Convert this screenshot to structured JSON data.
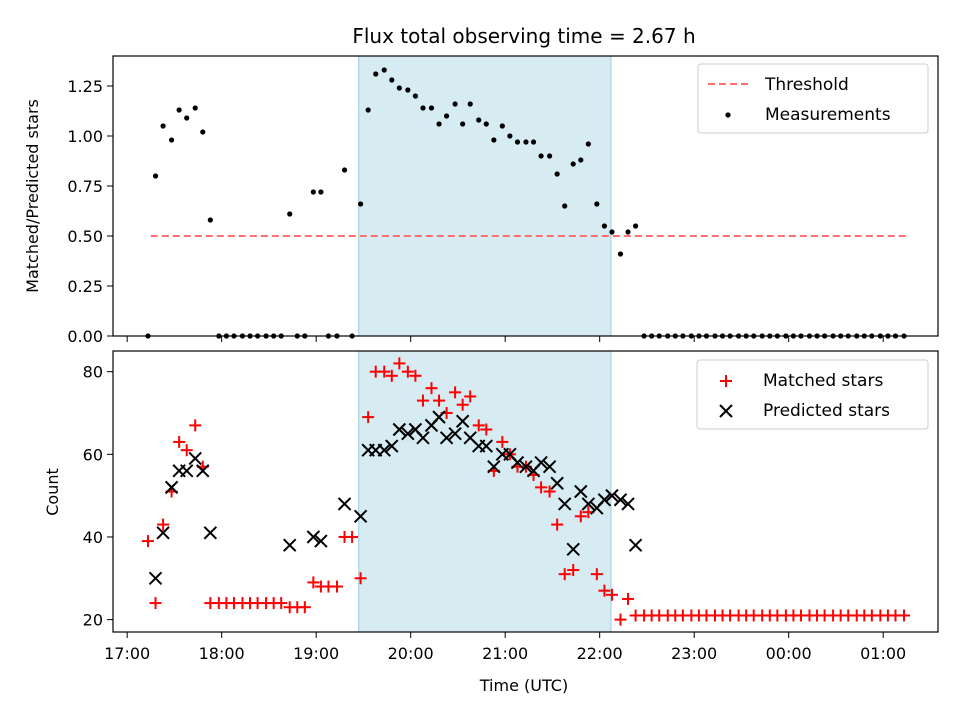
{
  "chart_data": [
    {
      "type": "scatter",
      "title": "Flux total observing time = 2.67 h",
      "ylabel": "Matched/Predicted stars",
      "ylim": [
        0,
        1.4
      ],
      "yticks": [
        "0.00",
        "0.25",
        "0.50",
        "0.75",
        "1.00",
        "1.25"
      ],
      "shaded_region": [
        19.45,
        22.12
      ],
      "legend_position": "top-right",
      "threshold": {
        "name": "Threshold",
        "value": 0.5,
        "x_range": [
          17.25,
          25.25
        ]
      },
      "series": [
        {
          "name": "Measurements",
          "x": [
            17.22,
            17.3,
            17.38,
            17.47,
            17.55,
            17.63,
            17.72,
            17.8,
            17.88,
            17.97,
            18.05,
            18.13,
            18.22,
            18.3,
            18.38,
            18.47,
            18.55,
            18.63,
            18.72,
            18.8,
            18.88,
            18.97,
            19.05,
            19.13,
            19.22,
            19.3,
            19.38,
            19.47,
            19.55,
            19.63,
            19.72,
            19.8,
            19.88,
            19.97,
            20.05,
            20.13,
            20.22,
            20.3,
            20.38,
            20.47,
            20.55,
            20.63,
            20.72,
            20.8,
            20.88,
            20.97,
            21.05,
            21.13,
            21.22,
            21.3,
            21.38,
            21.47,
            21.55,
            21.63,
            21.72,
            21.8,
            21.88,
            21.97,
            22.05,
            22.13,
            22.22,
            22.3,
            22.38,
            22.47,
            22.55,
            22.63,
            22.72,
            22.8,
            22.88,
            22.97,
            23.05,
            23.13,
            23.22,
            23.3,
            23.38,
            23.47,
            23.55,
            23.63,
            23.72,
            23.8,
            23.88,
            23.97,
            24.05,
            24.13,
            24.22,
            24.3,
            24.38,
            24.47,
            24.55,
            24.63,
            24.72,
            24.8,
            24.88,
            24.97,
            25.05,
            25.13,
            25.22
          ],
          "y": [
            0.0,
            0.8,
            1.05,
            0.98,
            1.13,
            1.09,
            1.14,
            1.02,
            0.58,
            0.0,
            0.0,
            0.0,
            0.0,
            0.0,
            0.0,
            0.0,
            0.0,
            0.0,
            0.61,
            0.0,
            0.0,
            0.72,
            0.72,
            0.0,
            0.0,
            0.83,
            0.0,
            0.66,
            1.13,
            1.31,
            1.33,
            1.28,
            1.24,
            1.23,
            1.2,
            1.14,
            1.14,
            1.06,
            1.1,
            1.16,
            1.06,
            1.16,
            1.08,
            1.06,
            0.98,
            1.05,
            1.0,
            0.97,
            0.97,
            0.97,
            0.9,
            0.9,
            0.81,
            0.65,
            0.86,
            0.88,
            0.96,
            0.66,
            0.55,
            0.52,
            0.41,
            0.52,
            0.55,
            0.0,
            0.0,
            0.0,
            0.0,
            0.0,
            0.0,
            0.0,
            0.0,
            0.0,
            0.0,
            0.0,
            0.0,
            0.0,
            0.0,
            0.0,
            0.0,
            0.0,
            0.0,
            0.0,
            0.0,
            0.0,
            0.0,
            0.0,
            0.0,
            0.0,
            0.0,
            0.0,
            0.0,
            0.0,
            0.0,
            0.0,
            0.0,
            0.0,
            0.0
          ]
        }
      ]
    },
    {
      "type": "scatter",
      "xlabel": "Time (UTC)",
      "ylabel": "Count",
      "ylim": [
        17,
        85
      ],
      "yticks": [
        "20",
        "40",
        "60",
        "80"
      ],
      "xlim": [
        16.85,
        25.58
      ],
      "xtick_values": [
        17,
        18,
        19,
        20,
        21,
        22,
        23,
        24,
        25
      ],
      "xtick_labels": [
        "17:00",
        "18:00",
        "19:00",
        "20:00",
        "21:00",
        "22:00",
        "23:00",
        "00:00",
        "01:00"
      ],
      "shaded_region": [
        19.45,
        22.12
      ],
      "legend_position": "top-right",
      "series": [
        {
          "name": "Matched stars",
          "x": [
            17.22,
            17.3,
            17.38,
            17.47,
            17.55,
            17.63,
            17.72,
            17.8,
            17.88,
            17.97,
            18.05,
            18.13,
            18.22,
            18.3,
            18.38,
            18.47,
            18.55,
            18.63,
            18.72,
            18.8,
            18.88,
            18.97,
            19.05,
            19.13,
            19.22,
            19.3,
            19.38,
            19.47,
            19.55,
            19.63,
            19.72,
            19.8,
            19.88,
            19.97,
            20.05,
            20.13,
            20.22,
            20.3,
            20.38,
            20.47,
            20.55,
            20.63,
            20.72,
            20.8,
            20.88,
            20.97,
            21.05,
            21.13,
            21.22,
            21.3,
            21.38,
            21.47,
            21.55,
            21.63,
            21.72,
            21.8,
            21.88,
            21.97,
            22.05,
            22.13,
            22.22,
            22.3,
            22.38,
            22.47,
            22.55,
            22.63,
            22.72,
            22.8,
            22.88,
            22.97,
            23.05,
            23.13,
            23.22,
            23.3,
            23.38,
            23.47,
            23.55,
            23.63,
            23.72,
            23.8,
            23.88,
            23.97,
            24.05,
            24.13,
            24.22,
            24.3,
            24.38,
            24.47,
            24.55,
            24.63,
            24.72,
            24.8,
            24.88,
            24.97,
            25.05,
            25.13,
            25.22
          ],
          "y": [
            39,
            24,
            43,
            51,
            63,
            61,
            67,
            57,
            24,
            24,
            24,
            24,
            24,
            24,
            24,
            24,
            24,
            24,
            23,
            23,
            23,
            29,
            28,
            28,
            28,
            40,
            40,
            30,
            69,
            80,
            80,
            79,
            82,
            80,
            79,
            73,
            76,
            73,
            70,
            75,
            72,
            74,
            67,
            66,
            56,
            63,
            60,
            57,
            57,
            55,
            52,
            51,
            43,
            31,
            32,
            45,
            46,
            31,
            27,
            26,
            20,
            25,
            21,
            21,
            21,
            21,
            21,
            21,
            21,
            21,
            21,
            21,
            21,
            21,
            21,
            21,
            21,
            21,
            21,
            21,
            21,
            21,
            21,
            21,
            21,
            21,
            21,
            21,
            21,
            21,
            21,
            21,
            21,
            21,
            21,
            21,
            21
          ]
        },
        {
          "name": "Predicted stars",
          "x": [
            17.3,
            17.38,
            17.47,
            17.55,
            17.63,
            17.72,
            17.8,
            17.88,
            18.72,
            18.97,
            19.05,
            19.3,
            19.47,
            19.55,
            19.63,
            19.72,
            19.8,
            19.88,
            19.97,
            20.05,
            20.13,
            20.22,
            20.3,
            20.38,
            20.47,
            20.55,
            20.63,
            20.72,
            20.8,
            20.88,
            20.97,
            21.05,
            21.13,
            21.22,
            21.3,
            21.38,
            21.47,
            21.55,
            21.63,
            21.72,
            21.8,
            21.88,
            21.97,
            22.05,
            22.13,
            22.22,
            22.3,
            22.38
          ],
          "y": [
            30,
            41,
            52,
            56,
            56,
            59,
            56,
            41,
            38,
            40,
            39,
            48,
            45,
            61,
            61,
            61,
            62,
            66,
            65,
            66,
            64,
            67,
            69,
            64,
            65,
            68,
            64,
            62,
            62,
            57,
            60,
            60,
            58,
            57,
            56,
            58,
            57,
            53,
            48,
            37,
            51,
            48,
            47,
            49,
            50,
            49,
            48,
            38
          ]
        }
      ]
    }
  ]
}
